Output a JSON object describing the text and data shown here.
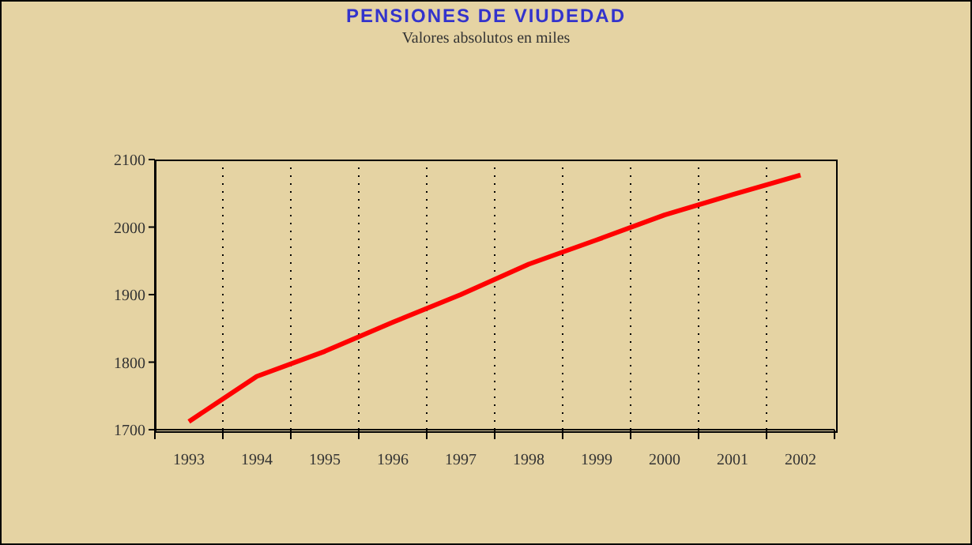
{
  "chart_data": {
    "type": "line",
    "title": "PENSIONES DE VIUDEDAD",
    "subtitle": "Valores absolutos en miles",
    "categories": [
      "1993",
      "1994",
      "1995",
      "1996",
      "1997",
      "1998",
      "1999",
      "2000",
      "2001",
      "2002"
    ],
    "series": [
      {
        "color": "#ff0000",
        "values": [
          1712,
          1779,
          1816,
          1859,
          1900,
          1945,
          1981,
          2018,
          2048,
          2077
        ]
      }
    ],
    "ylim": [
      1700,
      2100
    ],
    "yticks": [
      1700,
      1800,
      1900,
      2000,
      2100
    ],
    "grid": "x",
    "legend": false,
    "marker": "none",
    "line_style": "solid"
  }
}
